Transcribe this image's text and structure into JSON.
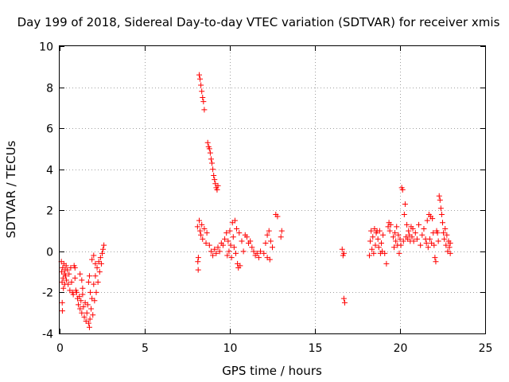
{
  "chart_data": {
    "type": "scatter",
    "title": "Day 199 of 2018, Sidereal Day-to-day VTEC variation (SDTVAR) for receiver xmis",
    "xlabel": "GPS time / hours",
    "ylabel": "SDTVAR / TECUs",
    "xlim": [
      0,
      25
    ],
    "ylim": [
      -4,
      10
    ],
    "xticks": [
      0,
      5,
      10,
      15,
      20,
      25
    ],
    "yticks": [
      -4,
      -2,
      0,
      2,
      4,
      6,
      8,
      10
    ],
    "grid": true,
    "marker": "plus",
    "color": "#ff0000",
    "series": [
      {
        "name": "SDTVAR",
        "points": [
          [
            0.1,
            -0.5
          ],
          [
            0.12,
            -1.0
          ],
          [
            0.14,
            -1.5
          ],
          [
            0.15,
            -2.5
          ],
          [
            0.16,
            -2.9
          ],
          [
            0.18,
            -0.8
          ],
          [
            0.2,
            -1.3
          ],
          [
            0.22,
            -1.8
          ],
          [
            0.25,
            -0.6
          ],
          [
            0.28,
            -1.1
          ],
          [
            0.3,
            -1.6
          ],
          [
            0.32,
            -0.9
          ],
          [
            0.35,
            -1.2
          ],
          [
            0.38,
            -0.7
          ],
          [
            0.4,
            -1.4
          ],
          [
            0.45,
            -0.9
          ],
          [
            0.5,
            -1.6
          ],
          [
            0.55,
            -1.1
          ],
          [
            0.6,
            -1.9
          ],
          [
            0.65,
            -0.8
          ],
          [
            0.7,
            -1.5
          ],
          [
            0.75,
            -2.0
          ],
          [
            0.8,
            -2.1
          ],
          [
            0.85,
            -0.7
          ],
          [
            0.9,
            -1.3
          ],
          [
            0.95,
            -1.9
          ],
          [
            1.0,
            -2.0
          ],
          [
            1.05,
            -2.3
          ],
          [
            1.1,
            -2.6
          ],
          [
            1.15,
            -2.2
          ],
          [
            1.2,
            -2.8
          ],
          [
            1.25,
            -2.4
          ],
          [
            1.3,
            -3.0
          ],
          [
            1.35,
            -2.1
          ],
          [
            1.4,
            -2.7
          ],
          [
            1.45,
            -3.2
          ],
          [
            1.5,
            -2.5
          ],
          [
            1.55,
            -3.4
          ],
          [
            1.6,
            -3.0
          ],
          [
            1.65,
            -2.6
          ],
          [
            1.7,
            -3.5
          ],
          [
            1.75,
            -3.7
          ],
          [
            1.78,
            -3.3
          ],
          [
            1.8,
            -2.0
          ],
          [
            1.85,
            -2.8
          ],
          [
            1.9,
            -2.3
          ],
          [
            1.95,
            -3.1
          ],
          [
            2.0,
            -1.6
          ],
          [
            2.05,
            -2.4
          ],
          [
            2.1,
            -1.2
          ],
          [
            2.15,
            -2.0
          ],
          [
            2.2,
            -0.8
          ],
          [
            2.25,
            -1.5
          ],
          [
            2.3,
            -0.5
          ],
          [
            2.35,
            -1.0
          ],
          [
            2.4,
            -0.3
          ],
          [
            2.45,
            -0.6
          ],
          [
            2.5,
            -0.1
          ],
          [
            2.55,
            0.1
          ],
          [
            2.6,
            0.3
          ],
          [
            1.9,
            -0.4
          ],
          [
            2.0,
            -0.2
          ],
          [
            2.1,
            -0.6
          ],
          [
            1.7,
            -1.5
          ],
          [
            1.75,
            -1.2
          ],
          [
            1.3,
            -1.4
          ],
          [
            1.35,
            -1.8
          ],
          [
            1.2,
            -1.1
          ],
          [
            0.9,
            -0.8
          ],
          [
            8.1,
            1.2
          ],
          [
            8.12,
            -0.5
          ],
          [
            8.14,
            -0.9
          ],
          [
            8.15,
            -0.3
          ],
          [
            8.2,
            8.6
          ],
          [
            8.25,
            8.4
          ],
          [
            8.3,
            8.1
          ],
          [
            8.35,
            7.8
          ],
          [
            8.4,
            7.5
          ],
          [
            8.45,
            7.3
          ],
          [
            8.5,
            6.9
          ],
          [
            8.2,
            1.5
          ],
          [
            8.25,
            1.0
          ],
          [
            8.3,
            0.8
          ],
          [
            8.35,
            1.3
          ],
          [
            8.4,
            0.6
          ],
          [
            8.5,
            1.1
          ],
          [
            8.6,
            0.4
          ],
          [
            8.65,
            0.9
          ],
          [
            8.7,
            5.3
          ],
          [
            8.75,
            5.1
          ],
          [
            8.8,
            5.0
          ],
          [
            8.85,
            4.8
          ],
          [
            8.9,
            4.5
          ],
          [
            8.95,
            4.3
          ],
          [
            9.0,
            4.0
          ],
          [
            9.05,
            3.7
          ],
          [
            9.1,
            3.5
          ],
          [
            9.15,
            3.3
          ],
          [
            9.2,
            3.1
          ],
          [
            9.25,
            3.0
          ],
          [
            9.3,
            3.2
          ],
          [
            8.8,
            0.3
          ],
          [
            8.9,
            0.0
          ],
          [
            9.0,
            -0.2
          ],
          [
            9.1,
            0.1
          ],
          [
            9.2,
            -0.1
          ],
          [
            9.3,
            0.2
          ],
          [
            9.4,
            0.0
          ],
          [
            9.5,
            0.4
          ],
          [
            9.6,
            0.3
          ],
          [
            9.7,
            0.6
          ],
          [
            9.8,
            0.9
          ],
          [
            9.85,
            -0.2
          ],
          [
            9.9,
            0.5
          ],
          [
            9.95,
            0.0
          ],
          [
            10.0,
            1.0
          ],
          [
            10.05,
            0.3
          ],
          [
            10.1,
            -0.3
          ],
          [
            10.15,
            1.4
          ],
          [
            10.2,
            0.7
          ],
          [
            10.25,
            0.2
          ],
          [
            10.3,
            1.5
          ],
          [
            10.35,
            -0.1
          ],
          [
            10.4,
            1.1
          ],
          [
            10.45,
            -0.6
          ],
          [
            10.5,
            -0.8
          ],
          [
            10.55,
            0.9
          ],
          [
            10.6,
            -0.7
          ],
          [
            10.7,
            0.5
          ],
          [
            10.8,
            0.0
          ],
          [
            10.9,
            0.8
          ],
          [
            11.0,
            0.7
          ],
          [
            11.1,
            0.4
          ],
          [
            11.2,
            0.5
          ],
          [
            11.3,
            0.2
          ],
          [
            11.4,
            0.0
          ],
          [
            11.5,
            -0.2
          ],
          [
            11.6,
            -0.1
          ],
          [
            11.7,
            -0.3
          ],
          [
            11.8,
            0.0
          ],
          [
            12.0,
            -0.1
          ],
          [
            12.1,
            0.4
          ],
          [
            12.2,
            0.8
          ],
          [
            12.3,
            1.0
          ],
          [
            12.4,
            0.5
          ],
          [
            12.5,
            0.2
          ],
          [
            12.2,
            -0.3
          ],
          [
            12.35,
            -0.4
          ],
          [
            12.7,
            1.8
          ],
          [
            12.8,
            1.7
          ],
          [
            13.0,
            0.7
          ],
          [
            13.05,
            1.0
          ],
          [
            16.6,
            0.1
          ],
          [
            16.65,
            -0.2
          ],
          [
            16.7,
            -2.3
          ],
          [
            16.75,
            -2.5
          ],
          [
            16.7,
            -0.1
          ],
          [
            18.2,
            -0.2
          ],
          [
            18.25,
            0.5
          ],
          [
            18.3,
            1.0
          ],
          [
            18.35,
            0.1
          ],
          [
            18.4,
            0.7
          ],
          [
            18.45,
            -0.1
          ],
          [
            18.5,
            1.1
          ],
          [
            18.55,
            0.3
          ],
          [
            18.6,
            0.9
          ],
          [
            18.65,
            1.0
          ],
          [
            18.7,
            0.6
          ],
          [
            18.75,
            0.2
          ],
          [
            18.8,
            1.0
          ],
          [
            18.85,
            -0.1
          ],
          [
            18.9,
            0.4
          ],
          [
            18.95,
            0.0
          ],
          [
            19.0,
            0.8
          ],
          [
            19.1,
            -0.1
          ],
          [
            19.2,
            -0.6
          ],
          [
            19.3,
            1.2
          ],
          [
            19.35,
            1.4
          ],
          [
            19.4,
            1.0
          ],
          [
            19.45,
            1.3
          ],
          [
            19.6,
            0.7
          ],
          [
            19.65,
            0.2
          ],
          [
            19.7,
            0.9
          ],
          [
            19.75,
            0.5
          ],
          [
            19.8,
            1.2
          ],
          [
            19.85,
            0.3
          ],
          [
            19.9,
            0.8
          ],
          [
            19.95,
            -0.1
          ],
          [
            20.0,
            0.6
          ],
          [
            20.05,
            0.3
          ],
          [
            20.1,
            3.1
          ],
          [
            20.15,
            3.0
          ],
          [
            20.2,
            0.5
          ],
          [
            20.25,
            1.8
          ],
          [
            20.3,
            2.3
          ],
          [
            20.35,
            0.7
          ],
          [
            20.4,
            1.3
          ],
          [
            20.45,
            0.6
          ],
          [
            20.5,
            1.0
          ],
          [
            20.55,
            0.8
          ],
          [
            20.6,
            0.5
          ],
          [
            20.65,
            1.2
          ],
          [
            20.7,
            0.7
          ],
          [
            20.75,
            1.1
          ],
          [
            20.8,
            0.5
          ],
          [
            20.9,
            0.9
          ],
          [
            21.0,
            0.6
          ],
          [
            21.1,
            1.3
          ],
          [
            21.2,
            0.3
          ],
          [
            21.3,
            0.8
          ],
          [
            21.4,
            1.1
          ],
          [
            21.5,
            0.6
          ],
          [
            21.55,
            0.4
          ],
          [
            21.6,
            1.5
          ],
          [
            21.65,
            0.2
          ],
          [
            21.7,
            1.8
          ],
          [
            21.75,
            0.6
          ],
          [
            21.8,
            1.7
          ],
          [
            21.85,
            0.4
          ],
          [
            21.9,
            1.6
          ],
          [
            21.95,
            0.9
          ],
          [
            22.0,
            0.3
          ],
          [
            22.05,
            -0.3
          ],
          [
            22.1,
            -0.5
          ],
          [
            22.15,
            1.0
          ],
          [
            22.2,
            0.9
          ],
          [
            22.25,
            0.5
          ],
          [
            22.3,
            2.7
          ],
          [
            22.35,
            2.5
          ],
          [
            22.4,
            2.1
          ],
          [
            22.45,
            1.8
          ],
          [
            22.5,
            1.4
          ],
          [
            22.55,
            0.9
          ],
          [
            22.6,
            0.6
          ],
          [
            22.65,
            1.1
          ],
          [
            22.7,
            0.3
          ],
          [
            22.75,
            0.8
          ],
          [
            22.8,
            0.0
          ],
          [
            22.85,
            0.5
          ],
          [
            22.9,
            0.2
          ],
          [
            22.95,
            0.4
          ],
          [
            22.95,
            -0.1
          ]
        ]
      }
    ]
  }
}
